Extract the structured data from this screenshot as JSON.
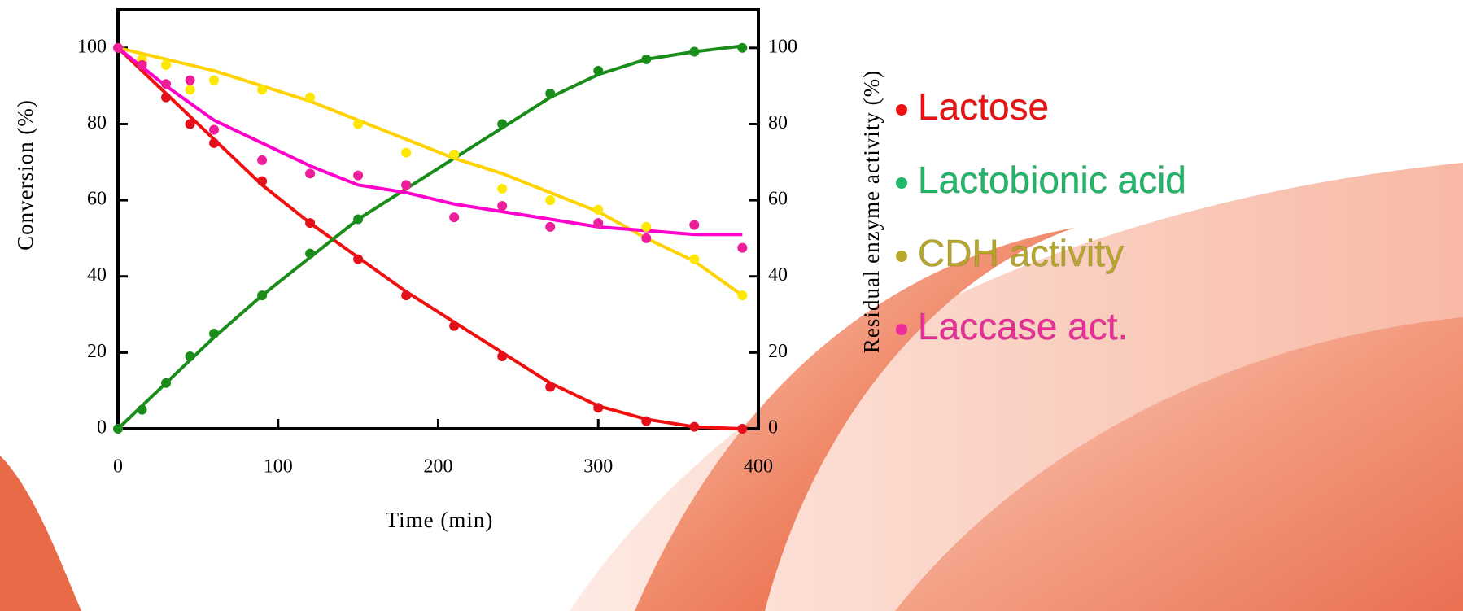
{
  "chart_data": {
    "type": "scatter",
    "x_label": "Time (min)",
    "y_label": "Conversion (%)",
    "y2_label": "Residual enzyme activity (%)",
    "x": [
      0,
      15,
      30,
      45,
      60,
      90,
      120,
      150,
      180,
      210,
      240,
      270,
      300,
      330,
      360,
      390
    ],
    "fit_x": [
      0,
      30,
      60,
      90,
      120,
      150,
      180,
      210,
      240,
      270,
      300,
      330,
      360,
      390
    ],
    "xlim": [
      0,
      400
    ],
    "xticks": [
      0,
      100,
      200,
      300,
      400
    ],
    "ylim": [
      0,
      110
    ],
    "yticks": [
      0,
      20,
      40,
      60,
      80,
      100
    ],
    "y2lim": [
      0,
      110
    ],
    "y2ticks": [
      0,
      20,
      40,
      60,
      80,
      100
    ],
    "series": [
      {
        "name": "Lactose",
        "color": "#e3101c",
        "line_color": "#f01010",
        "legend_color": "#ee1111",
        "values": [
          100,
          96,
          87,
          80,
          75,
          65,
          54,
          44.5,
          35,
          27,
          19,
          11,
          5.5,
          2,
          0.5,
          0
        ],
        "fit": [
          100,
          88,
          76,
          64,
          54,
          45,
          36,
          28,
          20,
          12,
          6,
          2.5,
          0.5,
          0
        ]
      },
      {
        "name": "Lactobionic acid",
        "color": "#1a8c1a",
        "line_color": "#1a8c1a",
        "legend_color": "#1fb86a",
        "values": [
          0,
          5,
          12,
          19,
          25,
          35,
          46,
          55,
          64,
          72,
          80,
          88,
          94,
          97,
          99,
          100
        ],
        "fit": [
          0,
          12,
          24,
          35,
          45,
          55,
          63,
          71,
          79,
          87,
          93,
          97,
          99,
          100.5
        ]
      },
      {
        "name": "CDH activity",
        "color": "#ffe800",
        "line_color": "#ffd200",
        "legend_color": "#b8a82a",
        "axis": "y2",
        "values": [
          100,
          97,
          95.5,
          89,
          91.5,
          89,
          87,
          80,
          72.5,
          72,
          63,
          60,
          57.5,
          53,
          44.5,
          35
        ],
        "fit": [
          100,
          97,
          94,
          90,
          86,
          81,
          76,
          71,
          67,
          62,
          57,
          50,
          44,
          35
        ]
      },
      {
        "name": "Laccase act.",
        "color": "#ee1e9a",
        "line_color": "#ff00cc",
        "legend_color": "#ee2c9c",
        "axis": "y2",
        "values": [
          100,
          95.5,
          90.5,
          91.5,
          78.5,
          70.5,
          67,
          66.5,
          64,
          55.5,
          58.5,
          53,
          54,
          50,
          53.5,
          47.5
        ],
        "fit": [
          100,
          90,
          81,
          75,
          69,
          64,
          62,
          59,
          57,
          55,
          53,
          52,
          51,
          51
        ]
      }
    ]
  }
}
